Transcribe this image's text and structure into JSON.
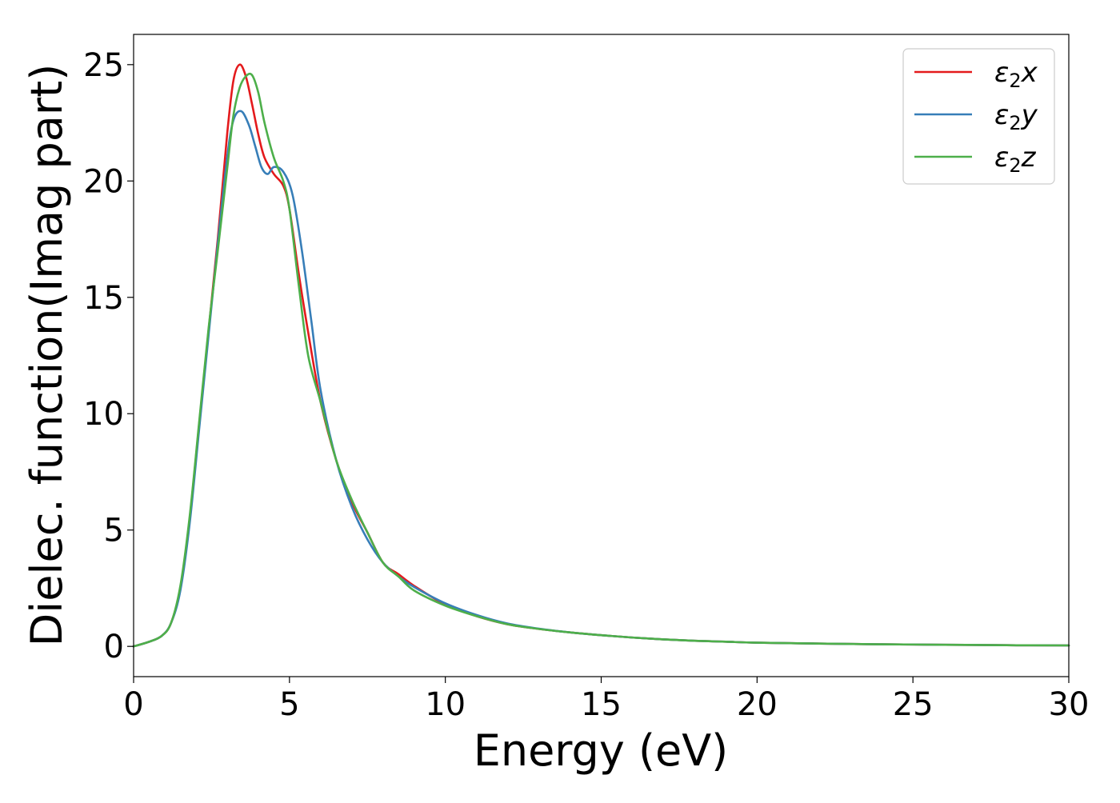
{
  "chart_data": {
    "type": "line",
    "title": "",
    "xlabel": "Energy (eV)",
    "ylabel": "Dielec. function(Imag part)",
    "xlim": [
      0,
      30
    ],
    "ylim": [
      -1.3,
      26.3
    ],
    "xticks": [
      0,
      5,
      10,
      15,
      20,
      25,
      30
    ],
    "yticks": [
      0,
      5,
      10,
      15,
      20,
      25
    ],
    "grid": false,
    "legend_position": "top-right",
    "series": [
      {
        "name": "ε2x",
        "legend": {
          "base": "ε",
          "sub": "2",
          "tail": "x"
        },
        "color": "#e41a1c",
        "points": [
          [
            0,
            0
          ],
          [
            0.5,
            0.2
          ],
          [
            0.9,
            0.45
          ],
          [
            1.2,
            1.0
          ],
          [
            1.5,
            2.5
          ],
          [
            1.8,
            5.5
          ],
          [
            2.1,
            9.5
          ],
          [
            2.4,
            13.5
          ],
          [
            2.7,
            17.5
          ],
          [
            3.0,
            22.0
          ],
          [
            3.2,
            24.3
          ],
          [
            3.4,
            25.0
          ],
          [
            3.6,
            24.5
          ],
          [
            3.8,
            23.3
          ],
          [
            4.0,
            22.0
          ],
          [
            4.2,
            21.0
          ],
          [
            4.5,
            20.3
          ],
          [
            4.8,
            19.8
          ],
          [
            5.0,
            18.8
          ],
          [
            5.3,
            16.0
          ],
          [
            5.6,
            13.5
          ],
          [
            6.0,
            10.5
          ],
          [
            6.5,
            8.0
          ],
          [
            7.0,
            6.2
          ],
          [
            7.5,
            4.9
          ],
          [
            8.0,
            3.6
          ],
          [
            8.5,
            3.1
          ],
          [
            9.0,
            2.6
          ],
          [
            10.0,
            1.8
          ],
          [
            11.0,
            1.3
          ],
          [
            12.0,
            0.95
          ],
          [
            13.0,
            0.75
          ],
          [
            14.0,
            0.6
          ],
          [
            15.0,
            0.48
          ],
          [
            16.0,
            0.38
          ],
          [
            17.0,
            0.3
          ],
          [
            18.0,
            0.24
          ],
          [
            19.0,
            0.2
          ],
          [
            20.0,
            0.16
          ],
          [
            22.0,
            0.12
          ],
          [
            24.0,
            0.09
          ],
          [
            26.0,
            0.07
          ],
          [
            28.0,
            0.05
          ],
          [
            30.0,
            0.04
          ]
        ]
      },
      {
        "name": "ε2y",
        "legend": {
          "base": "ε",
          "sub": "2",
          "tail": "y"
        },
        "color": "#377eb8",
        "points": [
          [
            0,
            0
          ],
          [
            0.5,
            0.2
          ],
          [
            0.9,
            0.45
          ],
          [
            1.2,
            1.0
          ],
          [
            1.5,
            2.4
          ],
          [
            1.8,
            5.3
          ],
          [
            2.1,
            9.3
          ],
          [
            2.4,
            13.3
          ],
          [
            2.7,
            17.3
          ],
          [
            3.0,
            21.0
          ],
          [
            3.2,
            22.6
          ],
          [
            3.45,
            23.0
          ],
          [
            3.7,
            22.4
          ],
          [
            3.9,
            21.5
          ],
          [
            4.1,
            20.6
          ],
          [
            4.3,
            20.3
          ],
          [
            4.5,
            20.6
          ],
          [
            4.8,
            20.4
          ],
          [
            5.1,
            19.4
          ],
          [
            5.4,
            17.0
          ],
          [
            5.7,
            14.0
          ],
          [
            6.0,
            11.0
          ],
          [
            6.5,
            8.0
          ],
          [
            7.0,
            6.0
          ],
          [
            7.5,
            4.6
          ],
          [
            8.0,
            3.6
          ],
          [
            8.5,
            3.0
          ],
          [
            9.0,
            2.55
          ],
          [
            10.0,
            1.85
          ],
          [
            11.0,
            1.35
          ],
          [
            12.0,
            0.98
          ],
          [
            13.0,
            0.76
          ],
          [
            14.0,
            0.6
          ],
          [
            15.0,
            0.48
          ],
          [
            16.0,
            0.38
          ],
          [
            17.0,
            0.3
          ],
          [
            18.0,
            0.24
          ],
          [
            19.0,
            0.2
          ],
          [
            20.0,
            0.16
          ],
          [
            22.0,
            0.12
          ],
          [
            24.0,
            0.09
          ],
          [
            26.0,
            0.07
          ],
          [
            28.0,
            0.05
          ],
          [
            30.0,
            0.04
          ]
        ]
      },
      {
        "name": "ε2z",
        "legend": {
          "base": "ε",
          "sub": "2",
          "tail": "z"
        },
        "color": "#4daf4a",
        "points": [
          [
            0,
            0
          ],
          [
            0.5,
            0.2
          ],
          [
            0.9,
            0.45
          ],
          [
            1.2,
            1.0
          ],
          [
            1.5,
            2.6
          ],
          [
            1.8,
            5.6
          ],
          [
            2.1,
            9.6
          ],
          [
            2.4,
            13.6
          ],
          [
            2.7,
            17.0
          ],
          [
            3.0,
            20.5
          ],
          [
            3.2,
            22.8
          ],
          [
            3.4,
            24.0
          ],
          [
            3.6,
            24.5
          ],
          [
            3.8,
            24.55
          ],
          [
            4.0,
            23.8
          ],
          [
            4.2,
            22.5
          ],
          [
            4.5,
            21.0
          ],
          [
            4.8,
            20.0
          ],
          [
            5.0,
            18.8
          ],
          [
            5.3,
            15.5
          ],
          [
            5.6,
            12.5
          ],
          [
            6.0,
            10.5
          ],
          [
            6.5,
            8.0
          ],
          [
            7.0,
            6.3
          ],
          [
            7.5,
            4.9
          ],
          [
            8.0,
            3.6
          ],
          [
            8.5,
            3.0
          ],
          [
            9.0,
            2.4
          ],
          [
            10.0,
            1.75
          ],
          [
            11.0,
            1.3
          ],
          [
            12.0,
            0.95
          ],
          [
            13.0,
            0.75
          ],
          [
            14.0,
            0.6
          ],
          [
            15.0,
            0.48
          ],
          [
            16.0,
            0.38
          ],
          [
            17.0,
            0.3
          ],
          [
            18.0,
            0.24
          ],
          [
            19.0,
            0.2
          ],
          [
            20.0,
            0.16
          ],
          [
            22.0,
            0.12
          ],
          [
            24.0,
            0.09
          ],
          [
            26.0,
            0.07
          ],
          [
            28.0,
            0.05
          ],
          [
            30.0,
            0.04
          ]
        ]
      }
    ]
  }
}
